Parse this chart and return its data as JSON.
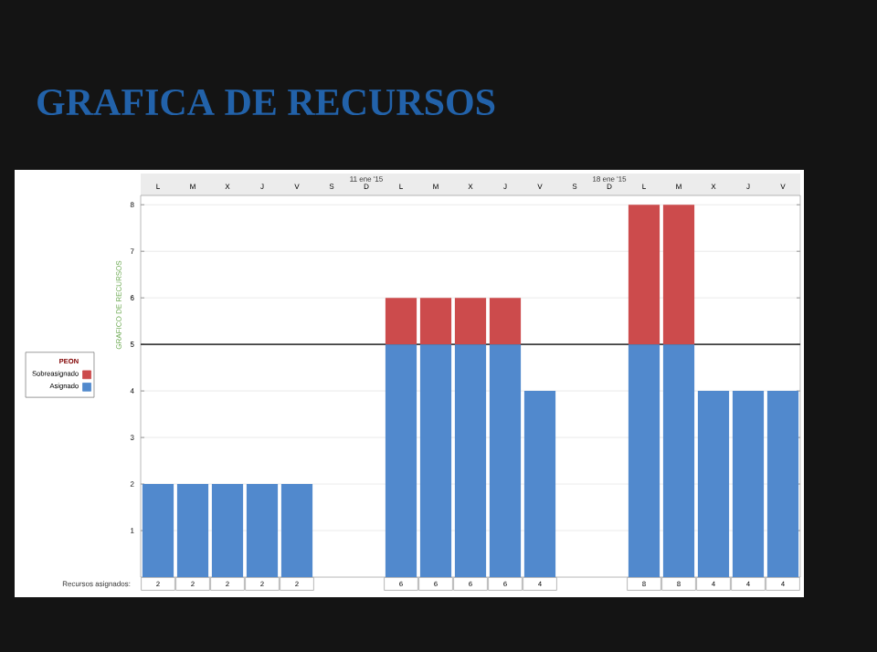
{
  "chart_data": {
    "type": "bar",
    "title": "GRAFICA DE RECURSOS",
    "ylabel": "GRAFICO DE RECURSOS",
    "legend_title": "PEON",
    "categories": [
      "L",
      "M",
      "X",
      "J",
      "V",
      "S",
      "D",
      "L",
      "M",
      "X",
      "J",
      "V",
      "S",
      "D",
      "L",
      "M",
      "X",
      "J",
      "V"
    ],
    "stacked": true,
    "series": [
      {
        "name": "Asignado",
        "color": "#5189cd",
        "values": [
          2,
          2,
          2,
          2,
          2,
          0,
          0,
          5,
          5,
          5,
          5,
          4,
          0,
          0,
          5,
          5,
          4,
          4,
          4
        ]
      },
      {
        "name": "Sobreasignado",
        "color": "#cc4b4c",
        "values": [
          0,
          0,
          0,
          0,
          0,
          0,
          0,
          1,
          1,
          1,
          1,
          0,
          0,
          0,
          3,
          3,
          0,
          0,
          0
        ]
      }
    ],
    "ylim": [
      0,
      8.2
    ],
    "yticks": [
      1,
      2,
      3,
      4,
      5,
      6,
      7,
      8
    ],
    "grid": "y",
    "legend": "left",
    "ref_lines": [
      {
        "axis": "y",
        "value": 5,
        "color": "#404040"
      }
    ],
    "totals": [
      "2",
      "2",
      "2",
      "2",
      "2",
      null,
      null,
      "6",
      "6",
      "6",
      "6",
      "4",
      null,
      null,
      "8",
      "8",
      "4",
      "4",
      "4"
    ],
    "annotations": [
      "11 ene '15",
      "18 ene '15",
      "Recursos asignados:"
    ]
  }
}
